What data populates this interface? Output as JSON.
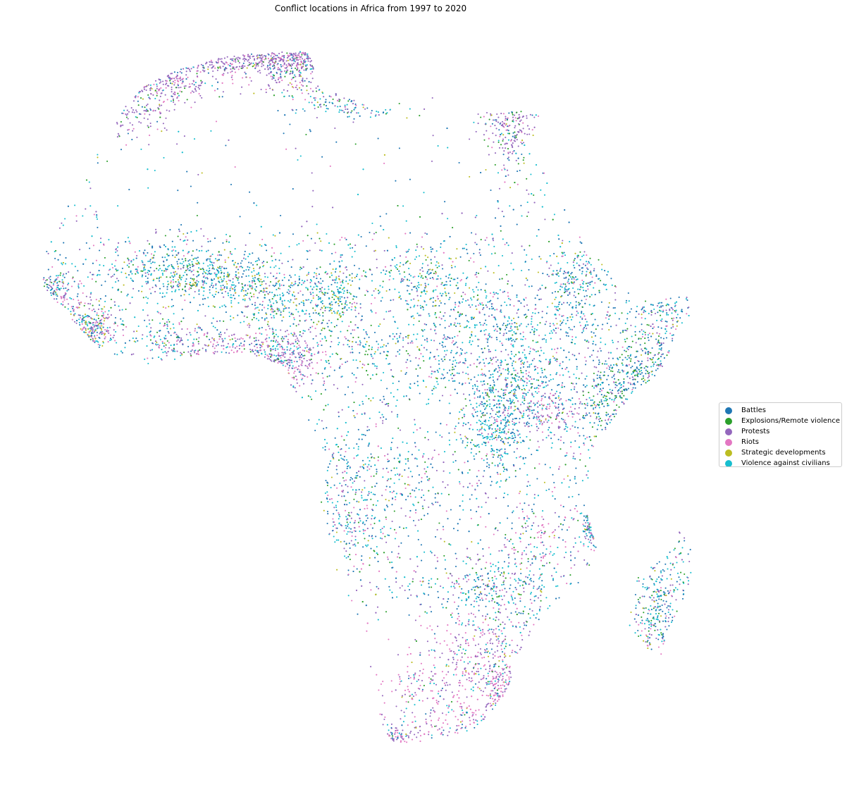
{
  "title": "Conflict locations in Africa from 1997 to 2020",
  "legend": {
    "items": [
      {
        "label": "Battles",
        "color": "#1f77b4"
      },
      {
        "label": "Explosions/Remote violence",
        "color": "#2ca02c"
      },
      {
        "label": "Protests",
        "color": "#9467bd"
      },
      {
        "label": "Riots",
        "color": "#e377c2"
      },
      {
        "label": "Strategic developments",
        "color": "#bcbd22"
      },
      {
        "label": "Violence against civilians",
        "color": "#17becf"
      }
    ]
  }
}
